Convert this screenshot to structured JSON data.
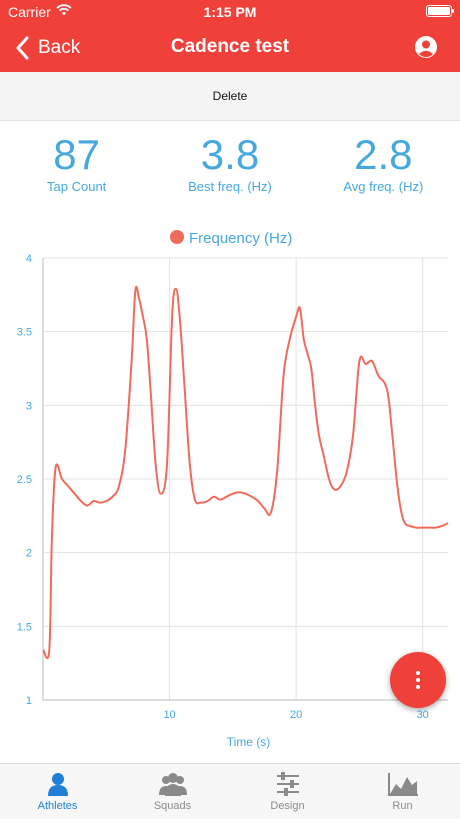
{
  "status_bar": {
    "carrier": "Carrier",
    "time": "1:15 PM"
  },
  "nav": {
    "back_label": "Back",
    "title": "Cadence test"
  },
  "actions": {
    "delete_label": "Delete"
  },
  "stats": [
    {
      "value": "87",
      "label": "Tap Count"
    },
    {
      "value": "3.8",
      "label": "Best freq. (Hz)"
    },
    {
      "value": "2.8",
      "label": "Avg freq. (Hz)"
    }
  ],
  "colors": {
    "brand": "#f0403a",
    "accent": "#45a9e0",
    "series": "#ef6b5c",
    "tab_active": "#1f7fd6",
    "tab_inactive": "#8a8a8a"
  },
  "chart_data": {
    "type": "line",
    "legend": "Frequency (Hz)",
    "xlabel": "Time (s)",
    "ylabel": "",
    "xlim": [
      0,
      32
    ],
    "ylim": [
      1,
      4
    ],
    "xticks": [
      10,
      20,
      30
    ],
    "yticks": [
      1,
      1.5,
      2,
      2.5,
      3,
      3.5,
      4
    ],
    "grid": true,
    "legend_position": "top-center",
    "series": [
      {
        "name": "Frequency (Hz)",
        "x": [
          0,
          0.5,
          0.7,
          1.0,
          1.5,
          2.0,
          2.5,
          3.0,
          3.5,
          4.0,
          4.5,
          5.0,
          5.5,
          6.0,
          6.5,
          7.0,
          7.3,
          7.6,
          7.9,
          8.2,
          8.5,
          8.9,
          9.3,
          9.8,
          10.2,
          10.5,
          10.8,
          11.2,
          11.6,
          12.0,
          12.5,
          13.0,
          13.5,
          14.0,
          14.5,
          15.0,
          15.5,
          16.0,
          16.5,
          17.0,
          17.5,
          18.0,
          18.5,
          19.0,
          19.5,
          20.0,
          20.3,
          20.6,
          20.9,
          21.2,
          21.5,
          21.8,
          22.2,
          22.6,
          23.0,
          23.5,
          24.0,
          24.5,
          25.0,
          25.5,
          26.0,
          26.5,
          27.0,
          27.3,
          27.6,
          28.0,
          28.3,
          28.6,
          29.0,
          29.5,
          30.0,
          30.5,
          31.0,
          31.5,
          32.0
        ],
        "y": [
          1.34,
          1.34,
          2.1,
          2.58,
          2.5,
          2.45,
          2.4,
          2.35,
          2.32,
          2.35,
          2.34,
          2.35,
          2.38,
          2.45,
          2.7,
          3.3,
          3.78,
          3.72,
          3.6,
          3.45,
          3.1,
          2.6,
          2.4,
          2.6,
          3.6,
          3.79,
          3.6,
          3.1,
          2.6,
          2.36,
          2.34,
          2.35,
          2.38,
          2.36,
          2.38,
          2.4,
          2.41,
          2.4,
          2.38,
          2.35,
          2.3,
          2.27,
          2.55,
          3.2,
          3.45,
          3.6,
          3.66,
          3.45,
          3.35,
          3.25,
          3.0,
          2.8,
          2.65,
          2.5,
          2.43,
          2.45,
          2.55,
          2.8,
          3.3,
          3.28,
          3.3,
          3.2,
          3.15,
          3.05,
          2.8,
          2.45,
          2.28,
          2.2,
          2.18,
          2.17,
          2.17,
          2.17,
          2.17,
          2.18,
          2.2
        ]
      }
    ]
  },
  "tabs": [
    {
      "label": "Athletes",
      "icon": "person-icon",
      "active": true
    },
    {
      "label": "Squads",
      "icon": "group-icon",
      "active": false
    },
    {
      "label": "Design",
      "icon": "sliders-icon",
      "active": false
    },
    {
      "label": "Run",
      "icon": "chart-area-icon",
      "active": false
    }
  ]
}
